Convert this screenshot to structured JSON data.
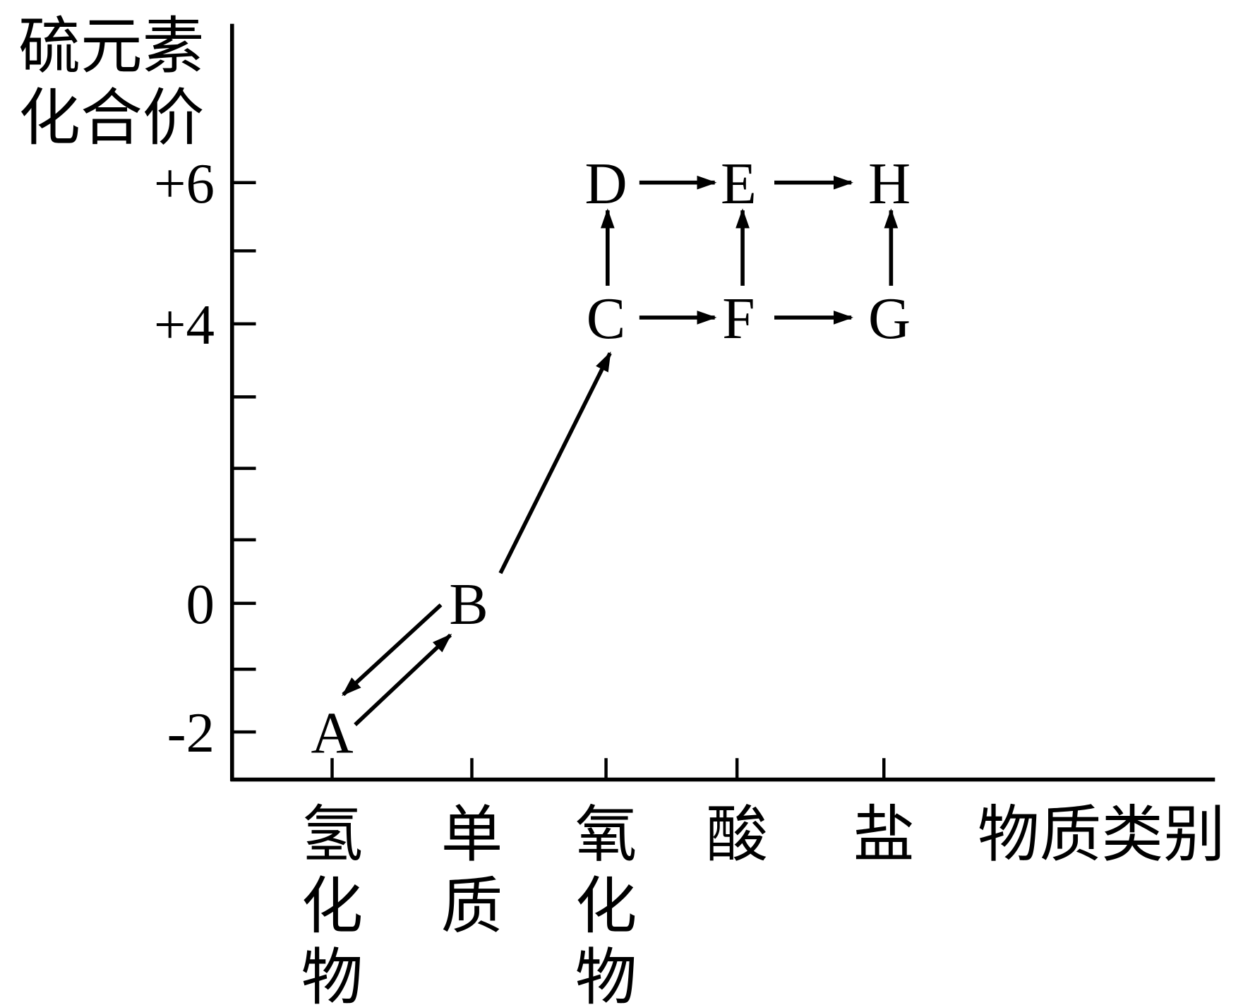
{
  "y_axis": {
    "title_lines": [
      "硫元素",
      "化合价"
    ],
    "tick_labels": [
      {
        "value": 6,
        "label": "+6"
      },
      {
        "value": 4,
        "label": "+4"
      },
      {
        "value": 0,
        "label": "0"
      },
      {
        "value": -2,
        "label": "-2"
      }
    ]
  },
  "x_axis": {
    "title": "物质类别",
    "categories": [
      {
        "id": "hydride",
        "lines": [
          "氢",
          "化",
          "物"
        ]
      },
      {
        "id": "element",
        "lines": [
          "单",
          "质"
        ]
      },
      {
        "id": "oxide",
        "lines": [
          "氧",
          "化",
          "物"
        ]
      },
      {
        "id": "acid",
        "lines": [
          "酸"
        ]
      },
      {
        "id": "salt",
        "lines": [
          "盐"
        ]
      }
    ]
  },
  "nodes": [
    {
      "id": "A",
      "category": "hydride",
      "valence": -2
    },
    {
      "id": "B",
      "category": "element",
      "valence": 0
    },
    {
      "id": "C",
      "category": "oxide",
      "valence": 4
    },
    {
      "id": "D",
      "category": "oxide",
      "valence": 6
    },
    {
      "id": "E",
      "category": "acid",
      "valence": 6
    },
    {
      "id": "F",
      "category": "acid",
      "valence": 4
    },
    {
      "id": "G",
      "category": "salt",
      "valence": 4
    },
    {
      "id": "H",
      "category": "salt",
      "valence": 6
    }
  ],
  "edges": [
    {
      "from": "B",
      "to": "A"
    },
    {
      "from": "A",
      "to": "B"
    },
    {
      "from": "B",
      "to": "C"
    },
    {
      "from": "C",
      "to": "D"
    },
    {
      "from": "C",
      "to": "F"
    },
    {
      "from": "D",
      "to": "E"
    },
    {
      "from": "E",
      "to": "H"
    },
    {
      "from": "F",
      "to": "E"
    },
    {
      "from": "F",
      "to": "G"
    },
    {
      "from": "G",
      "to": "H"
    }
  ]
}
